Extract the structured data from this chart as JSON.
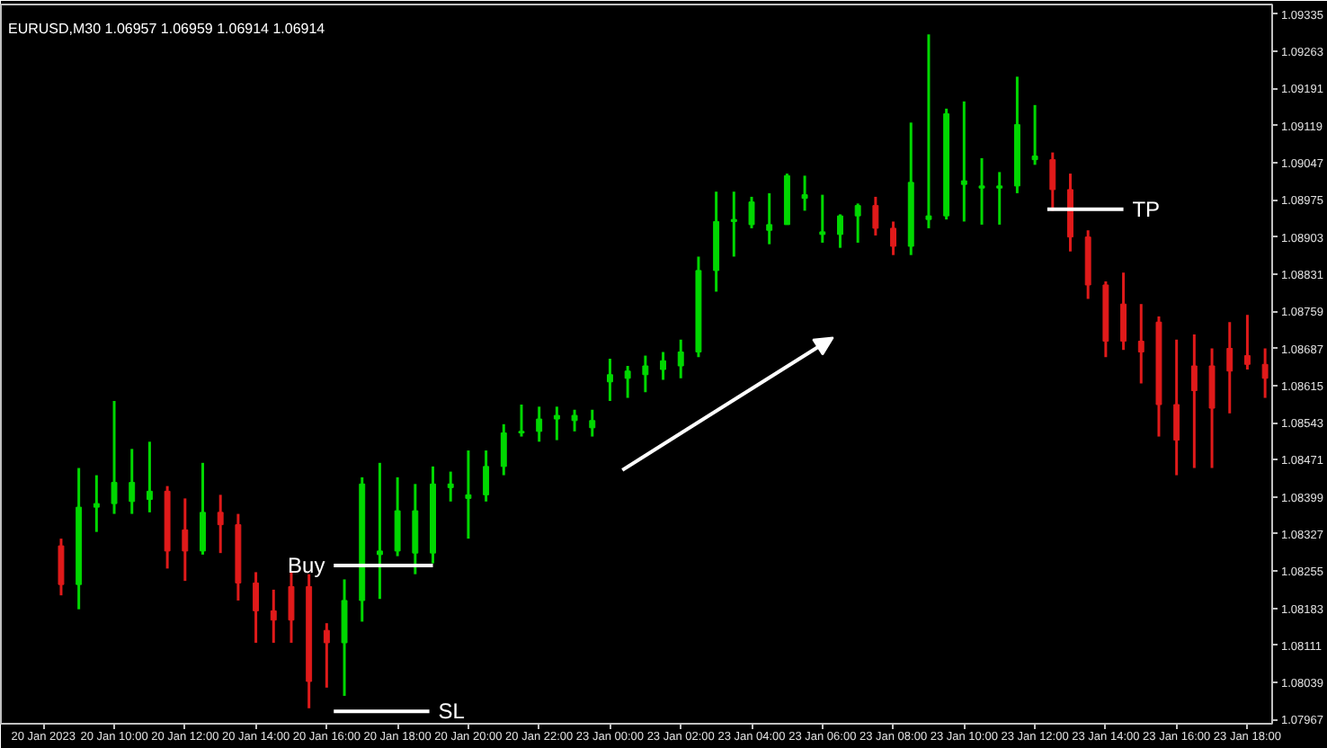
{
  "chart_data": {
    "type": "candlestick",
    "title": "EURUSD,M30  1.06957 1.06959 1.06914 1.06914",
    "categories": [
      "20 Jan 2023",
      null,
      null,
      null,
      "20 Jan 10:00",
      null,
      null,
      null,
      "20 Jan 12:00",
      null,
      null,
      null,
      "20 Jan 14:00",
      null,
      null,
      null,
      "20 Jan 16:00",
      null,
      null,
      null,
      "20 Jan 18:00",
      null,
      null,
      null,
      "20 Jan 20:00",
      null,
      null,
      null,
      "20 Jan 22:00",
      null,
      null,
      null,
      "23 Jan 00:00",
      null,
      null,
      null,
      "23 Jan 02:00",
      null,
      null,
      null,
      "23 Jan 04:00",
      null,
      null,
      null,
      "23 Jan 06:00",
      null,
      null,
      null,
      "23 Jan 08:00",
      null,
      null,
      null,
      "23 Jan 10:00",
      null,
      null,
      null,
      "23 Jan 12:00",
      null,
      null,
      null,
      "23 Jan 14:00",
      null,
      null,
      null,
      "23 Jan 16:00",
      null,
      null,
      null,
      "23 Jan 18:00",
      null
    ],
    "ohlc": [
      null,
      [
        1.08304,
        1.08318,
        1.08208,
        1.08229
      ],
      [
        1.08229,
        1.08455,
        1.08181,
        1.08379
      ],
      [
        1.08379,
        1.08441,
        1.08331,
        1.08386
      ],
      [
        1.08386,
        1.08585,
        1.08366,
        1.08427
      ],
      [
        1.0839,
        1.08492,
        1.08366,
        1.08427
      ],
      [
        1.08394,
        1.08506,
        1.08369,
        1.0841
      ],
      [
        1.0841,
        1.0842,
        1.0826,
        1.08294
      ],
      [
        1.08335,
        1.08396,
        1.08236,
        1.08294
      ],
      [
        1.08294,
        1.08465,
        1.08287,
        1.08369
      ],
      [
        1.08369,
        1.08403,
        1.0829,
        1.08345
      ],
      [
        1.08345,
        1.08366,
        1.08198,
        1.08232
      ],
      [
        1.08232,
        1.08253,
        1.08116,
        1.08178
      ],
      [
        1.08178,
        1.08219,
        1.08116,
        1.0816
      ],
      [
        1.08225,
        1.08253,
        1.08116,
        1.0816
      ],
      [
        1.08225,
        1.08249,
        1.07989,
        1.08041
      ],
      [
        1.0814,
        1.08154,
        1.08029,
        1.08116
      ],
      [
        1.08116,
        1.08239,
        1.08013,
        1.08198
      ],
      [
        1.08198,
        1.08437,
        1.08157,
        1.08424
      ],
      [
        1.08287,
        1.08465,
        1.08201,
        1.08294
      ],
      [
        1.08294,
        1.08437,
        1.08284,
        1.08372
      ],
      [
        1.0829,
        1.08424,
        1.08249,
        1.08372
      ],
      [
        1.0829,
        1.08458,
        1.0827,
        1.08424
      ],
      [
        1.08417,
        1.08448,
        1.0839,
        1.08424
      ],
      [
        1.08396,
        1.08489,
        1.08318,
        1.08403
      ],
      [
        1.08403,
        1.08489,
        1.0839,
        1.08458
      ],
      [
        1.08458,
        1.0854,
        1.08441,
        1.08523
      ],
      [
        1.08523,
        1.08578,
        1.08516,
        1.08526
      ],
      [
        1.08526,
        1.08574,
        1.08506,
        1.0855
      ],
      [
        1.0855,
        1.08574,
        1.08509,
        1.08557
      ],
      [
        1.08547,
        1.08568,
        1.08526,
        1.08557
      ],
      [
        1.08533,
        1.08568,
        1.08516,
        1.08547
      ],
      [
        1.08622,
        1.08667,
        1.08585,
        1.08636
      ],
      [
        1.08629,
        1.08653,
        1.08591,
        1.08643
      ],
      [
        1.08636,
        1.08673,
        1.08602,
        1.08653
      ],
      [
        1.08646,
        1.0868,
        1.08626,
        1.08663
      ],
      [
        1.08653,
        1.08704,
        1.08629,
        1.0868
      ],
      [
        1.0868,
        1.08865,
        1.0867,
        1.08838
      ],
      [
        1.08838,
        1.08991,
        1.08797,
        1.08933
      ],
      [
        1.08933,
        1.08991,
        1.08865,
        1.08937
      ],
      [
        1.08927,
        1.08981,
        1.0892,
        1.08971
      ],
      [
        1.08916,
        1.08988,
        1.08889,
        1.08927
      ],
      [
        1.08927,
        1.09026,
        1.08927,
        1.09022
      ],
      [
        1.08978,
        1.09022,
        1.08954,
        1.08985
      ],
      [
        1.08908,
        1.08985,
        1.08892,
        1.08913
      ],
      [
        1.08908,
        1.08947,
        1.08882,
        1.08944
      ],
      [
        1.08944,
        1.08968,
        1.08892,
        1.08964
      ],
      [
        1.08964,
        1.08981,
        1.08906,
        1.0892
      ],
      [
        1.0892,
        1.08933,
        1.08868,
        1.08885
      ],
      [
        1.08885,
        1.09125,
        1.08868,
        1.09009
      ],
      [
        1.08937,
        1.09296,
        1.0892,
        1.08944
      ],
      [
        1.08944,
        1.09152,
        1.08937,
        1.09142
      ],
      [
        1.09005,
        1.09166,
        1.08933,
        1.09012
      ],
      [
        1.08998,
        1.09056,
        1.08927,
        1.09002
      ],
      [
        1.08998,
        1.09029,
        1.08927,
        1.09002
      ],
      [
        1.09002,
        1.09214,
        1.08988,
        1.09121
      ],
      [
        1.09053,
        1.09159,
        1.09043,
        1.0906
      ],
      [
        1.09053,
        1.09067,
        1.08954,
        1.08995
      ],
      [
        1.08995,
        1.09026,
        1.08875,
        1.08903
      ],
      [
        1.08903,
        1.08916,
        1.08783,
        1.0881
      ],
      [
        1.0881,
        1.08817,
        1.0867,
        1.08701
      ],
      [
        1.08773,
        1.08834,
        1.08684,
        1.08701
      ],
      [
        1.08701,
        1.08773,
        1.08619,
        1.0868
      ],
      [
        1.08738,
        1.08749,
        1.08516,
        1.08578
      ],
      [
        1.08578,
        1.08704,
        1.08441,
        1.08509
      ],
      [
        1.08653,
        1.08714,
        1.08455,
        1.08605
      ],
      [
        1.08653,
        1.08687,
        1.08455,
        1.08571
      ],
      [
        1.08687,
        1.08738,
        1.08561,
        1.08643
      ],
      [
        1.08673,
        1.08752,
        1.08646,
        1.08656
      ],
      [
        1.08656,
        1.08687,
        1.08591,
        1.08629
      ]
    ],
    "colors": [
      null,
      "#e01a1a",
      "#00d800",
      "#00d800",
      "#00d800",
      "#00d800",
      "#00d800",
      "#e01a1a",
      "#e01a1a",
      "#00d800",
      "#e01a1a",
      "#e01a1a",
      "#e01a1a",
      "#e01a1a",
      "#e01a1a",
      "#e01a1a",
      "#e01a1a",
      "#00d800",
      "#00d800",
      "#00d800",
      "#00d800",
      "#00d800",
      "#00d800",
      "#00d800",
      "#00d800",
      "#00d800",
      "#00d800",
      "#00d800",
      "#00d800",
      "#00d800",
      "#00d800",
      "#00d800",
      "#00d800",
      "#00d800",
      "#00d800",
      "#00d800",
      "#00d800",
      "#00d800",
      "#00d800",
      "#00d800",
      "#00d800",
      "#00d800",
      "#00d800",
      "#00d800",
      "#00d800",
      "#00d800",
      "#00d800",
      "#e01a1a",
      "#e01a1a",
      "#00d800",
      "#00d800",
      "#00d800",
      "#00d800",
      "#00d800",
      "#00d800",
      "#00d800",
      "#00d800",
      "#e01a1a",
      "#e01a1a",
      "#e01a1a",
      "#e01a1a",
      "#e01a1a",
      "#e01a1a",
      "#e01a1a",
      "#e01a1a",
      "#e01a1a",
      "#e01a1a",
      "#e01a1a",
      "#e01a1a",
      "#e01a1a"
    ],
    "ylim": [
      1.07959,
      1.09354
    ],
    "yticks": [
      1.09335,
      1.09263,
      1.09191,
      1.09119,
      1.09047,
      1.08975,
      1.08903,
      1.08831,
      1.08759,
      1.08687,
      1.08615,
      1.08543,
      1.08471,
      1.08399,
      1.08327,
      1.08255,
      1.08183,
      1.08111,
      1.08039,
      1.07967
    ],
    "ref_lines": [
      {
        "axis": "y",
        "value": 1.08266,
        "label": "Buy",
        "color": "#ffffff"
      },
      {
        "axis": "y",
        "value": 1.07983,
        "label": "SL",
        "color": "#ffffff"
      },
      {
        "axis": "y",
        "value": 1.08957,
        "label": "TP",
        "color": "#ffffff"
      }
    ],
    "grid": false
  }
}
